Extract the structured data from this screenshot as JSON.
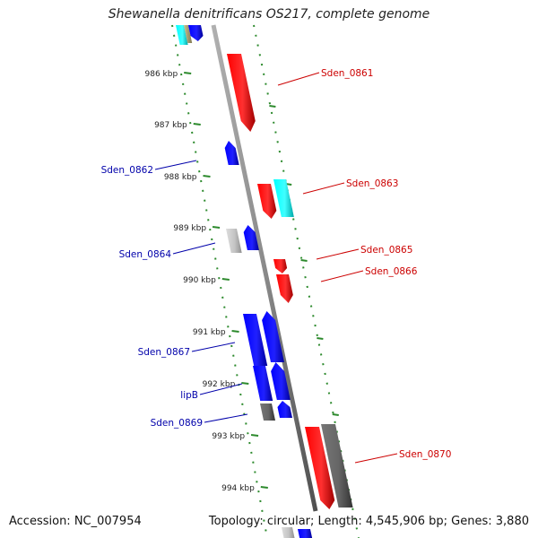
{
  "title": "Shewanella denitrificans OS217, complete genome",
  "footer": {
    "accession": "Accession: NC_007954",
    "topology": "Topology: circular; Length: 4,545,906 bp; Genes: 3,880"
  },
  "colors": {
    "backbone": "#808080",
    "tick_dots": "#2d8a2d",
    "forward_label": "#cc0000",
    "reverse_label": "#0000aa",
    "red": "#ff0000",
    "blue": "#0000ff",
    "cyan": "#00ffff",
    "gray": "#555555",
    "lightgray": "#bbbbbb",
    "olive": "#a8a070"
  },
  "ticks": [
    "986 kbp",
    "987 kbp",
    "988 kbp",
    "989 kbp",
    "990 kbp",
    "991 kbp",
    "992 kbp",
    "993 kbp",
    "994 kbp"
  ],
  "labels": {
    "forward": [
      "Sden_0861",
      "Sden_0863",
      "Sden_0865",
      "Sden_0866",
      "Sden_0870"
    ],
    "reverse": [
      "Sden_0862",
      "Sden_0864",
      "Sden_0867",
      "lipB",
      "Sden_0869"
    ]
  }
}
